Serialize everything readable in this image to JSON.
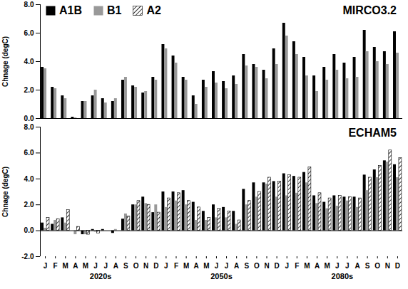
{
  "chart_data": [
    {
      "type": "bar",
      "title": "MIRCO3.2",
      "y_label": "Chnage (degC)",
      "categories": [
        "J",
        "F",
        "M",
        "A",
        "M",
        "J",
        "J",
        "A",
        "S",
        "O",
        "N",
        "D",
        "J",
        "F",
        "M",
        "A",
        "M",
        "J",
        "J",
        "A",
        "S",
        "O",
        "N",
        "D",
        "J",
        "F",
        "M",
        "A",
        "M",
        "J",
        "J",
        "A",
        "S",
        "O",
        "N",
        "D"
      ],
      "series": [
        {
          "name": "A1B",
          "color": "#000000",
          "values": [
            3.6,
            2.2,
            1.6,
            0.1,
            1.2,
            1.6,
            1.4,
            1.2,
            2.7,
            2.3,
            1.8,
            2.9,
            5.2,
            4.4,
            2.9,
            1.6,
            2.7,
            3.3,
            2.6,
            3.0,
            4.5,
            3.8,
            3.4,
            4.9,
            6.7,
            5.4,
            4.3,
            3.0,
            3.6,
            4.5,
            3.9,
            4.3,
            6.2,
            5.0,
            4.7,
            6.1
          ]
        },
        {
          "name": "B1",
          "color": "#999999",
          "values": [
            3.5,
            2.1,
            1.4,
            0.05,
            1.2,
            2.0,
            1.1,
            1.4,
            2.9,
            2.2,
            1.9,
            2.7,
            4.9,
            3.9,
            2.7,
            1.0,
            2.2,
            2.5,
            2.1,
            2.4,
            3.7,
            3.6,
            2.8,
            3.8,
            5.8,
            4.5,
            3.0,
            1.9,
            2.7,
            3.4,
            2.8,
            2.9,
            4.7,
            4.0,
            3.8,
            4.6
          ]
        },
        {
          "name": "A2",
          "color": "#000000",
          "marker": "hatch",
          "values": [
            null,
            null,
            null,
            null,
            null,
            null,
            null,
            null,
            null,
            null,
            null,
            null,
            null,
            null,
            null,
            null,
            null,
            null,
            null,
            null,
            null,
            null,
            null,
            null,
            null,
            null,
            null,
            null,
            null,
            null,
            null,
            null,
            null,
            null,
            null,
            null
          ]
        }
      ],
      "ylim": [
        0,
        8
      ],
      "yticks": [
        {
          "value": 0,
          "label": "0.0"
        },
        {
          "value": 2,
          "label": "2.0"
        },
        {
          "value": 4,
          "label": "4.0"
        },
        {
          "value": 6,
          "label": "6.0"
        },
        {
          "value": 8,
          "label": "8.0"
        }
      ],
      "tick_labels": "y",
      "legend": "top-left",
      "grid": false
    },
    {
      "type": "bar",
      "title": "ECHAM5",
      "y_label": "Chnage (degC)",
      "categories": [
        "J",
        "F",
        "M",
        "A",
        "M",
        "J",
        "J",
        "A",
        "S",
        "O",
        "N",
        "D",
        "J",
        "F",
        "M",
        "A",
        "M",
        "J",
        "J",
        "A",
        "S",
        "O",
        "N",
        "D",
        "J",
        "F",
        "M",
        "A",
        "M",
        "J",
        "J",
        "A",
        "S",
        "O",
        "N",
        "D"
      ],
      "x_groups": [
        "2020s",
        "2050s",
        "2080s"
      ],
      "series": [
        {
          "name": "A1B",
          "color": "#000000",
          "values": [
            0.6,
            0.5,
            1.0,
            0.0,
            -0.3,
            0.1,
            0.1,
            -0.2,
            0.9,
            2.0,
            2.6,
            1.4,
            3.0,
            3.0,
            3.1,
            2.2,
            1.5,
            2.0,
            1.8,
            1.5,
            3.2,
            3.7,
            3.7,
            3.8,
            4.4,
            4.2,
            4.5,
            2.7,
            2.2,
            2.7,
            2.6,
            2.6,
            4.3,
            4.7,
            5.4,
            5.1
          ]
        },
        {
          "name": "B1",
          "color": "#999999",
          "values": [
            0.2,
            0.8,
            0.6,
            -0.3,
            -0.3,
            -0.1,
            0.0,
            0.1,
            1.3,
            2.0,
            2.1,
            2.0,
            1.8,
            2.3,
            2.0,
            0.8,
            0.8,
            1.0,
            1.0,
            0.5,
            2.0,
            2.6,
            3.6,
            2.6,
            2.7,
            2.9,
            3.7,
            2.1,
            1.7,
            1.9,
            2.3,
            1.8,
            3.1,
            4.1,
            5.3,
            4.1
          ]
        },
        {
          "name": "A2",
          "color": "#000000",
          "marker": "hatch",
          "values": [
            1.0,
            0.9,
            1.6,
            0.3,
            -0.3,
            -0.2,
            0.0,
            0.0,
            1.1,
            2.3,
            2.0,
            1.4,
            2.5,
            2.9,
            2.3,
            1.8,
            1.0,
            1.7,
            1.5,
            0.8,
            2.3,
            3.0,
            4.1,
            3.8,
            4.3,
            4.1,
            4.9,
            2.9,
            2.5,
            2.7,
            2.6,
            2.5,
            4.1,
            5.0,
            6.2,
            5.6
          ]
        }
      ],
      "ylim": [
        -2,
        8
      ],
      "yticks": [
        {
          "value": -2,
          "label": "-2.0"
        },
        {
          "value": 0,
          "label": "0.0"
        },
        {
          "value": 2,
          "label": "2.0"
        },
        {
          "value": 4,
          "label": "4.0"
        },
        {
          "value": 6,
          "label": "6.0"
        },
        {
          "value": 8,
          "label": "8.0"
        }
      ],
      "grid": false
    }
  ]
}
